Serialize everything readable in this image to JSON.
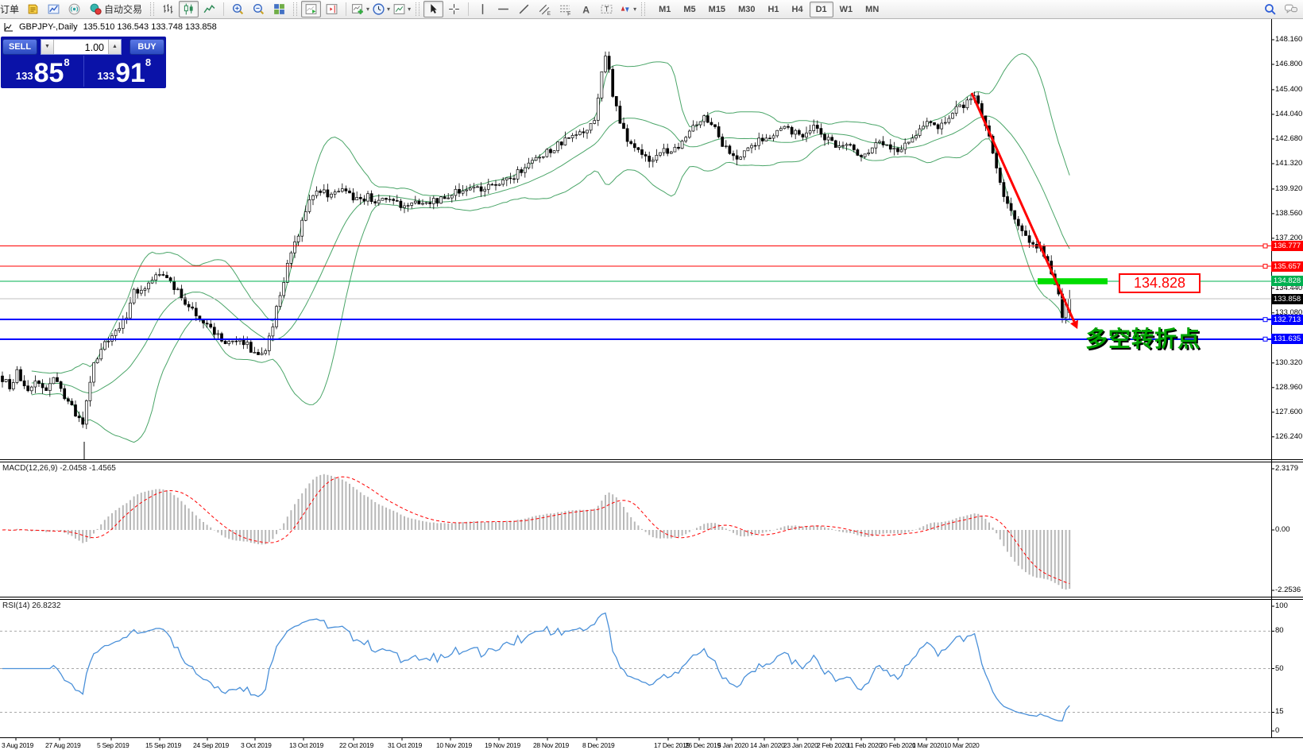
{
  "toolbar": {
    "order_label": "订单",
    "autotrade_label": "自动交易",
    "timeframes": [
      "M1",
      "M5",
      "M15",
      "M30",
      "H1",
      "H4",
      "D1",
      "W1",
      "MN"
    ],
    "active_timeframe": "D1"
  },
  "chart_header": {
    "symbol_title": "GBPJPY-,Daily",
    "ohlc_readout": "135.510 136.543 133.748 133.858"
  },
  "trade_panel": {
    "sell_label": "SELL",
    "buy_label": "BUY",
    "volume": "1.00",
    "sell_price": {
      "prefix": "133",
      "big": "85",
      "sup": "8"
    },
    "buy_price": {
      "prefix": "133",
      "big": "91",
      "sup": "8"
    }
  },
  "price_axis": {
    "ticks": [
      "148.160",
      "146.800",
      "145.400",
      "144.040",
      "142.680",
      "141.320",
      "139.920",
      "138.560",
      "137.200",
      "134.440",
      "133.080",
      "130.320",
      "128.960",
      "127.600",
      "126.240"
    ],
    "level_labels": [
      {
        "text": "136.777",
        "color": "#ff0000"
      },
      {
        "text": "135.657",
        "color": "#ff0000"
      },
      {
        "text": "134.828",
        "color": "#00b050"
      },
      {
        "text": "133.858",
        "color": "#000000"
      },
      {
        "text": "132.713",
        "color": "#0000ff"
      },
      {
        "text": "131.635",
        "color": "#0000ff"
      }
    ]
  },
  "macd_panel": {
    "label": "MACD(12,26,9)",
    "value_main": "-2.0458",
    "value_signal": "-1.4565",
    "axis_ticks": [
      "2.3179",
      "0.00",
      "-2.2536"
    ]
  },
  "rsi_panel": {
    "label": "RSI(14)",
    "value": "26.8232",
    "axis_ticks": [
      "100",
      "80",
      "50",
      "15",
      "0"
    ],
    "gridlines": [
      80,
      50,
      15
    ]
  },
  "date_axis": [
    "3 Aug 2019",
    "27 Aug 2019",
    "5 Sep 2019",
    "15 Sep 2019",
    "24 Sep 2019",
    "3 Oct 2019",
    "13 Oct 2019",
    "22 Oct 2019",
    "31 Oct 2019",
    "10 Nov 2019",
    "19 Nov 2019",
    "28 Nov 2019",
    "8 Dec 2019",
    "17 Dec 2019",
    "26 Dec 2019",
    "5 Jan 2020",
    "14 Jan 2020",
    "23 Jan 2020",
    "2 Feb 2020",
    "11 Feb 2020",
    "20 Feb 2020",
    "1 Mar 2020",
    "10 Mar 2020"
  ],
  "annotations": {
    "support_callout": "134.828",
    "turning_point_text": "多空转折点",
    "green_zone_price": 134.828,
    "arrow_color": "#ff0000",
    "green_zone_color": "#00dd00"
  },
  "chart_data": {
    "type": "candlestick",
    "symbol": "GBPJPY-",
    "timeframe": "Daily",
    "ohlc": {
      "open": 135.51,
      "high": 136.543,
      "low": 133.748,
      "close": 133.858
    },
    "y_axis_range": [
      126.24,
      148.16
    ],
    "levels": [
      {
        "price": 136.777,
        "color": "#ff0000",
        "width": 1.2,
        "handle": true
      },
      {
        "price": 135.657,
        "color": "#ff0000",
        "width": 1.2,
        "handle": true
      },
      {
        "price": 134.828,
        "color": "#00b050",
        "width": 1.2,
        "handle": false
      },
      {
        "price": 133.858,
        "color": "#c0c0c0",
        "width": 1,
        "handle": false
      },
      {
        "price": 132.713,
        "color": "#0000ff",
        "width": 2,
        "handle": true
      },
      {
        "price": 131.635,
        "color": "#0000ff",
        "width": 2,
        "handle": true
      }
    ],
    "indicators": [
      "Bollinger Bands (green)",
      "MACD(12,26,9)",
      "RSI(14)"
    ],
    "macd_values": [
      -2.0458,
      -1.4565
    ],
    "rsi_value": 26.8232,
    "price_path": [
      [
        0,
        129.6
      ],
      [
        12,
        129.0
      ],
      [
        22,
        129.8
      ],
      [
        34,
        128.5
      ],
      [
        46,
        129.4
      ],
      [
        58,
        128.8
      ],
      [
        70,
        129.6
      ],
      [
        80,
        128.4
      ],
      [
        90,
        127.9
      ],
      [
        98,
        127.2
      ],
      [
        104,
        126.9
      ],
      [
        110,
        128.4
      ],
      [
        118,
        130.3
      ],
      [
        126,
        130.9
      ],
      [
        136,
        131.6
      ],
      [
        148,
        132.1
      ],
      [
        158,
        132.8
      ],
      [
        168,
        134.2
      ],
      [
        180,
        134.5
      ],
      [
        192,
        134.9
      ],
      [
        204,
        135.3
      ],
      [
        212,
        134.8
      ],
      [
        222,
        134.3
      ],
      [
        234,
        133.7
      ],
      [
        248,
        133.0
      ],
      [
        262,
        132.4
      ],
      [
        276,
        131.7
      ],
      [
        290,
        131.3
      ],
      [
        304,
        131.6
      ],
      [
        318,
        131.0
      ],
      [
        330,
        130.7
      ],
      [
        340,
        131.8
      ],
      [
        350,
        133.6
      ],
      [
        360,
        135.4
      ],
      [
        368,
        136.4
      ],
      [
        378,
        137.8
      ],
      [
        388,
        139.2
      ],
      [
        396,
        139.9
      ],
      [
        406,
        139.8
      ],
      [
        416,
        139.5
      ],
      [
        428,
        139.9
      ],
      [
        440,
        139.6
      ],
      [
        452,
        139.3
      ],
      [
        464,
        139.5
      ],
      [
        476,
        139.2
      ],
      [
        488,
        139.4
      ],
      [
        500,
        139.1
      ],
      [
        512,
        138.9
      ],
      [
        524,
        139.1
      ],
      [
        536,
        139.3
      ],
      [
        548,
        139.2
      ],
      [
        560,
        139.4
      ],
      [
        572,
        139.7
      ],
      [
        584,
        139.9
      ],
      [
        596,
        140.1
      ],
      [
        608,
        139.9
      ],
      [
        620,
        140.1
      ],
      [
        632,
        140.2
      ],
      [
        644,
        140.5
      ],
      [
        656,
        141.0
      ],
      [
        668,
        141.4
      ],
      [
        680,
        141.7
      ],
      [
        692,
        142.0
      ],
      [
        704,
        142.4
      ],
      [
        716,
        142.7
      ],
      [
        728,
        142.9
      ],
      [
        740,
        143.2
      ],
      [
        750,
        144.0
      ],
      [
        758,
        146.5
      ],
      [
        762,
        147.3
      ],
      [
        766,
        146.6
      ],
      [
        772,
        145.0
      ],
      [
        778,
        144.0
      ],
      [
        784,
        143.3
      ],
      [
        790,
        142.6
      ],
      [
        798,
        142.1
      ],
      [
        808,
        141.8
      ],
      [
        818,
        141.5
      ],
      [
        828,
        141.9
      ],
      [
        838,
        142.1
      ],
      [
        848,
        142.0
      ],
      [
        858,
        142.6
      ],
      [
        868,
        143.3
      ],
      [
        878,
        143.7
      ],
      [
        888,
        143.9
      ],
      [
        898,
        143.4
      ],
      [
        908,
        142.5
      ],
      [
        918,
        141.9
      ],
      [
        928,
        141.7
      ],
      [
        938,
        142.0
      ],
      [
        948,
        142.4
      ],
      [
        958,
        142.7
      ],
      [
        968,
        142.9
      ],
      [
        978,
        143.1
      ],
      [
        988,
        143.3
      ],
      [
        998,
        143.1
      ],
      [
        1008,
        142.9
      ],
      [
        1018,
        143.2
      ],
      [
        1028,
        143.4
      ],
      [
        1038,
        142.8
      ],
      [
        1048,
        142.4
      ],
      [
        1058,
        142.1
      ],
      [
        1068,
        142.4
      ],
      [
        1078,
        142.0
      ],
      [
        1088,
        141.8
      ],
      [
        1098,
        142.3
      ],
      [
        1108,
        142.6
      ],
      [
        1118,
        142.4
      ],
      [
        1128,
        142.1
      ],
      [
        1138,
        142.4
      ],
      [
        1148,
        142.8
      ],
      [
        1158,
        143.2
      ],
      [
        1168,
        143.5
      ],
      [
        1178,
        143.3
      ],
      [
        1188,
        143.7
      ],
      [
        1198,
        144.1
      ],
      [
        1208,
        144.4
      ],
      [
        1218,
        144.8
      ],
      [
        1226,
        145.0
      ],
      [
        1234,
        144.2
      ],
      [
        1242,
        143.2
      ],
      [
        1250,
        141.9
      ],
      [
        1258,
        140.5
      ],
      [
        1266,
        139.3
      ],
      [
        1274,
        138.4
      ],
      [
        1282,
        137.8
      ],
      [
        1290,
        137.3
      ],
      [
        1298,
        136.6
      ],
      [
        1306,
        136.9
      ],
      [
        1314,
        136.4
      ],
      [
        1320,
        135.7
      ],
      [
        1326,
        135.1
      ],
      [
        1332,
        134.1
      ],
      [
        1337,
        133.0
      ],
      [
        1342,
        133.5
      ],
      [
        1347,
        133.86
      ]
    ]
  }
}
